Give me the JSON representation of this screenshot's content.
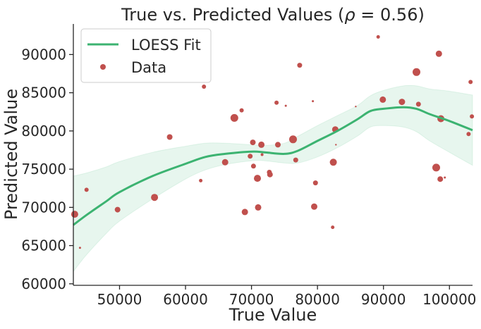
{
  "chart_data": {
    "type": "scatter",
    "title_prefix": "True vs. Predicted Values (",
    "title_rho": "ρ",
    "title_suffix": " = 0.56)",
    "xlabel": "True Value",
    "ylabel": "Predicted Value",
    "xlim": [
      43000,
      103500
    ],
    "ylim": [
      59800,
      94000
    ],
    "xticks": [
      50000,
      60000,
      70000,
      80000,
      90000,
      100000
    ],
    "yticks": [
      60000,
      65000,
      70000,
      75000,
      80000,
      85000,
      90000
    ],
    "grid": false,
    "legend_position": "top-left",
    "colors": {
      "fit": "#3cb371",
      "band": "#3cb371",
      "points": "#c0504d",
      "axis": "#262626"
    },
    "series": [
      {
        "name": "LOESS Fit",
        "kind": "line",
        "x": [
          43000,
          45000,
          48000,
          50000,
          55000,
          60000,
          63000,
          66000,
          70000,
          72000,
          75000,
          77000,
          80000,
          83000,
          86000,
          88000,
          90000,
          93000,
          95000,
          97000,
          100000,
          103500
        ],
        "y": [
          67700,
          69000,
          70800,
          72000,
          74100,
          75700,
          76600,
          77000,
          77300,
          77200,
          77000,
          77400,
          78700,
          80000,
          81500,
          82600,
          82900,
          83100,
          82900,
          82200,
          81300,
          80100
        ],
        "band_upper": [
          74100,
          74500,
          75300,
          76000,
          77200,
          78000,
          78400,
          78400,
          78200,
          78100,
          78400,
          79300,
          80700,
          82000,
          83300,
          84600,
          85300,
          85900,
          85900,
          85500,
          85200,
          84700
        ],
        "band_lower": [
          61600,
          63800,
          66600,
          68200,
          71100,
          73700,
          74900,
          75600,
          76100,
          76100,
          75800,
          75800,
          76600,
          77800,
          79300,
          80500,
          80700,
          80500,
          79900,
          78700,
          77200,
          75500
        ]
      },
      {
        "name": "Data",
        "kind": "scatter",
        "points": [
          [
            43200,
            69100,
            5
          ],
          [
            44000,
            64700,
            1.5
          ],
          [
            45000,
            72300,
            3
          ],
          [
            49700,
            69700,
            4
          ],
          [
            55300,
            71300,
            5
          ],
          [
            57600,
            79200,
            4
          ],
          [
            62300,
            73500,
            2.5
          ],
          [
            62800,
            85800,
            3
          ],
          [
            66000,
            75900,
            4.5
          ],
          [
            67400,
            81700,
            5.5
          ],
          [
            68500,
            82700,
            3
          ],
          [
            69000,
            69400,
            4.5
          ],
          [
            69800,
            76700,
            3.5
          ],
          [
            70200,
            78500,
            4
          ],
          [
            70300,
            75400,
            3.5
          ],
          [
            70900,
            73800,
            5
          ],
          [
            71000,
            70000,
            4.5
          ],
          [
            71500,
            78200,
            4.5
          ],
          [
            71600,
            76900,
            2
          ],
          [
            72700,
            74600,
            3.5
          ],
          [
            72800,
            74300,
            4
          ],
          [
            73800,
            83700,
            3
          ],
          [
            74000,
            78200,
            4
          ],
          [
            75200,
            83300,
            1.5
          ],
          [
            76300,
            78900,
            5.5
          ],
          [
            76700,
            76200,
            3.5
          ],
          [
            77300,
            88600,
            3.5
          ],
          [
            79300,
            83900,
            1.5
          ],
          [
            79500,
            70100,
            4.5
          ],
          [
            79700,
            73200,
            3.5
          ],
          [
            82300,
            67400,
            2.5
          ],
          [
            82400,
            75900,
            5
          ],
          [
            82700,
            80200,
            4.5
          ],
          [
            82800,
            78200,
            1.2
          ],
          [
            85800,
            83200,
            1.2
          ],
          [
            89200,
            92300,
            2.5
          ],
          [
            89900,
            84100,
            4.5
          ],
          [
            92800,
            83800,
            4.5
          ],
          [
            95000,
            87700,
            5.5
          ],
          [
            95300,
            83500,
            3.5
          ],
          [
            98000,
            75200,
            5.5
          ],
          [
            98400,
            90100,
            4.5
          ],
          [
            98600,
            73700,
            4
          ],
          [
            98700,
            81600,
            5
          ],
          [
            99300,
            73900,
            1.5
          ],
          [
            102900,
            79600,
            3
          ],
          [
            103200,
            86400,
            3
          ],
          [
            103400,
            81900,
            3
          ]
        ]
      }
    ]
  }
}
